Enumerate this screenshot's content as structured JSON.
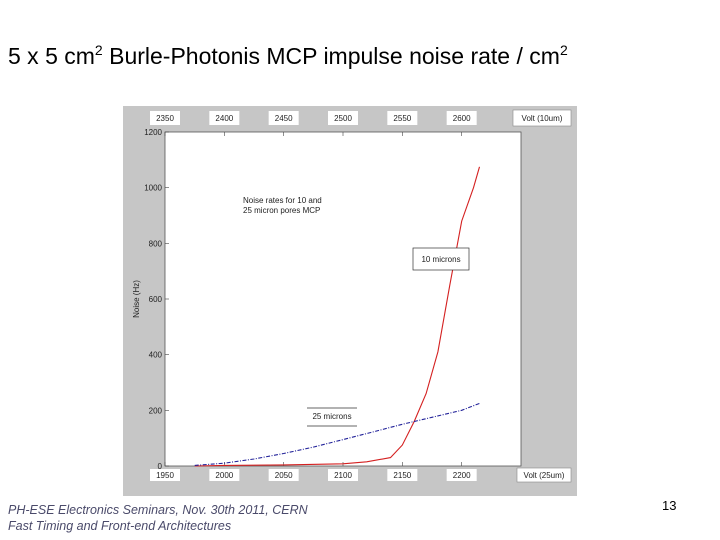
{
  "slide": {
    "title_prefix": "5 x 5 cm",
    "title_sup1": "2",
    "title_main": " Burle-Photonis MCP impulse noise rate / cm",
    "title_sup2": "2",
    "footer_line1": "PH-ESE Electronics Seminars,  Nov. 30th 2011, CERN",
    "footer_line2": "Fast Timing and Front-end Architectures",
    "page_number": "13"
  },
  "colors": {
    "red_series": "#d42020",
    "blue_series": "#23239a",
    "frame_gray": "#c6c6c6"
  },
  "chart_data": {
    "type": "line",
    "ylabel": "Noise (Hz)",
    "xlabel": "Volt (25um)",
    "x2label": "Volt (10um)",
    "ylim": [
      0,
      1200
    ],
    "xlim": [
      1950,
      2250
    ],
    "x2lim": [
      2350,
      2650
    ],
    "yticks": [
      "0",
      "200",
      "400",
      "600",
      "800",
      "1000",
      "1200"
    ],
    "xticks": [
      "1950",
      "2000",
      "2050",
      "2100",
      "2150",
      "2200"
    ],
    "x2ticks": [
      "2350",
      "2400",
      "2450",
      "2500",
      "2550",
      "2600"
    ],
    "annotation": "Noise rates for 10 and\n25 micron pores MCP",
    "series": [
      {
        "name": "10 microns",
        "color": "#d42020",
        "axis": "top",
        "x": [
          2375,
          2400,
          2450,
          2500,
          2520,
          2540,
          2550,
          2560,
          2570,
          2580,
          2590,
          2600,
          2610,
          2615
        ],
        "y": [
          0,
          2,
          4,
          8,
          15,
          30,
          75,
          160,
          260,
          410,
          650,
          880,
          1000,
          1075
        ]
      },
      {
        "name": "25 microns",
        "color": "#23239a",
        "axis": "bottom",
        "x": [
          1975,
          2000,
          2025,
          2050,
          2075,
          2100,
          2125,
          2150,
          2175,
          2200,
          2215
        ],
        "y": [
          2,
          10,
          25,
          45,
          68,
          95,
          122,
          150,
          175,
          200,
          225
        ]
      }
    ]
  }
}
